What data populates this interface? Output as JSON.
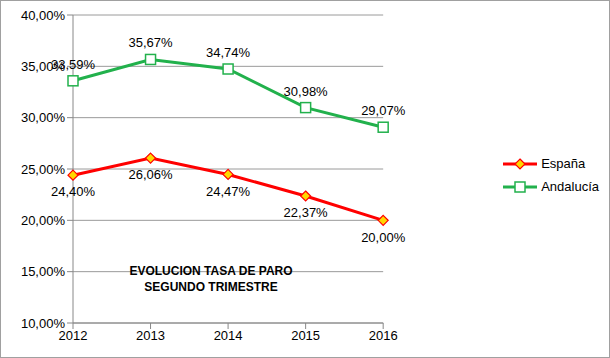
{
  "chart_data": {
    "type": "line",
    "title": "EVOLUCION TASA DE PARO\nSEGUNDO TRIMESTRE",
    "categories": [
      "2012",
      "2013",
      "2014",
      "2015",
      "2016"
    ],
    "series": [
      {
        "name": "España",
        "color": "#ff0000",
        "marker": "diamond",
        "values": [
          24.4,
          26.06,
          24.47,
          22.37,
          20.0
        ],
        "value_labels": [
          "24,40%",
          "26,06%",
          "24,47%",
          "22,37%",
          "20,00%"
        ]
      },
      {
        "name": "Andalucía",
        "color": "#22b14c",
        "marker": "square",
        "values": [
          33.59,
          35.67,
          34.74,
          30.98,
          29.07
        ],
        "value_labels": [
          "33,59%",
          "35,67%",
          "34,74%",
          "30,98%",
          "29,07%"
        ]
      }
    ],
    "ylim": [
      10,
      40
    ],
    "yticks": [
      {
        "value": 10,
        "label": "10,00%"
      },
      {
        "value": 15,
        "label": "15,00%"
      },
      {
        "value": 20,
        "label": "20,00%"
      },
      {
        "value": 25,
        "label": "25,00%"
      },
      {
        "value": 30,
        "label": "30,00%"
      },
      {
        "value": 35,
        "label": "35,00%"
      },
      {
        "value": 40,
        "label": "40,00%"
      }
    ],
    "grid": true,
    "legend": "right",
    "data_labels": true
  }
}
